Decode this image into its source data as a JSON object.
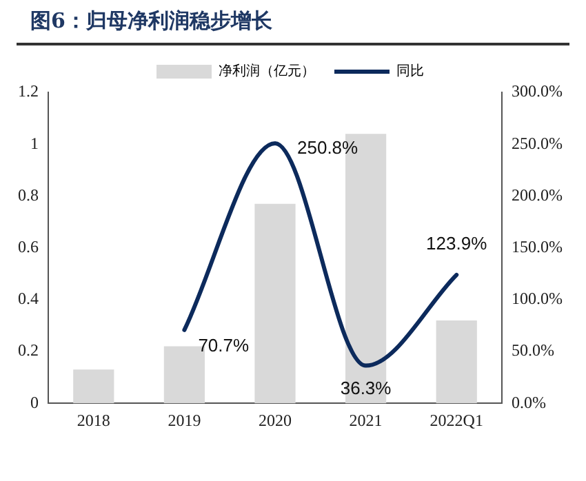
{
  "chart_data": {
    "type": "bar",
    "title": "图6：归母净利润稳步增长",
    "categories": [
      "2018",
      "2019",
      "2020",
      "2021",
      "2022Q1"
    ],
    "series": [
      {
        "name": "净利润（亿元）",
        "color": "#d9d9d9",
        "values": [
          0.13,
          0.22,
          0.77,
          1.04,
          0.32
        ]
      },
      {
        "name": "同比",
        "type": "line",
        "axis": "y2",
        "color": "#0c2a5c",
        "values": [
          null,
          70.7,
          250.8,
          36.3,
          123.9
        ],
        "value_labels": [
          null,
          "70.7%",
          "250.8%",
          "36.3%",
          "123.9%"
        ]
      }
    ],
    "ylim": [
      0,
      1.2
    ],
    "yticks": [
      0,
      0.2,
      0.4,
      0.6,
      0.8,
      1,
      1.2
    ],
    "y2lim": [
      0,
      300
    ],
    "y2ticks": [
      {
        "value": 0,
        "label": "0.0%"
      },
      {
        "value": 50,
        "label": "50.0%"
      },
      {
        "value": 100,
        "label": "100.0%"
      },
      {
        "value": 150,
        "label": "150.0%"
      },
      {
        "value": 200,
        "label": "200.0%"
      },
      {
        "value": 250,
        "label": "250.0%"
      },
      {
        "value": 300,
        "label": "300.0%"
      }
    ],
    "legend": "top",
    "grid": false,
    "marker": "none"
  }
}
